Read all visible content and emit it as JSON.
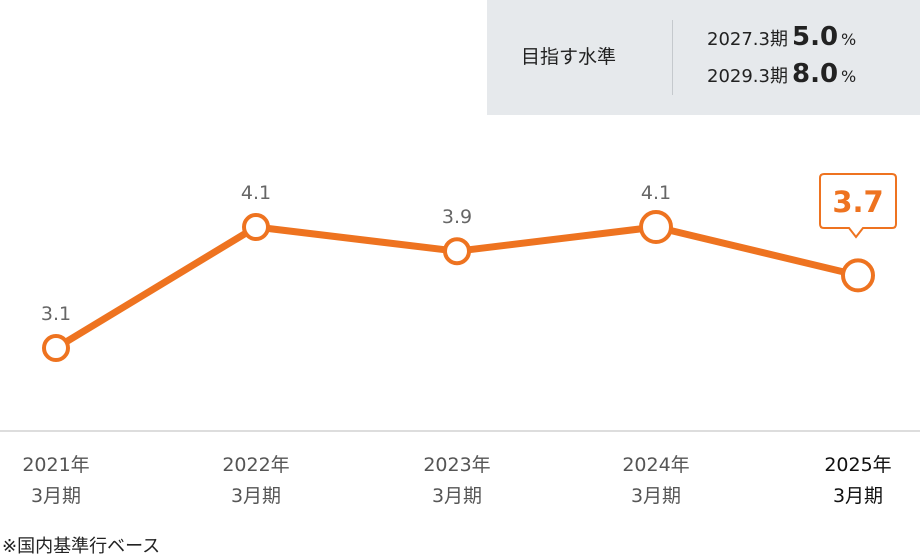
{
  "target": {
    "label": "目指す水準",
    "rows": [
      {
        "period": "2027.3期",
        "value": "5.0",
        "unit": "%"
      },
      {
        "period": "2029.3期",
        "value": "8.0",
        "unit": "%"
      }
    ]
  },
  "chart_data": {
    "type": "line",
    "categories": [
      "2021年 3月期",
      "2022年 3月期",
      "2023年 3月期",
      "2024年 3月期",
      "2025年 3月期"
    ],
    "category_lines": [
      [
        "2021年",
        "3月期"
      ],
      [
        "2022年",
        "3月期"
      ],
      [
        "2023年",
        "3月期"
      ],
      [
        "2024年",
        "3月期"
      ],
      [
        "2025年",
        "3月期"
      ]
    ],
    "values": [
      3.1,
      4.1,
      3.9,
      4.1,
      3.7
    ],
    "value_labels": [
      "3.1",
      "4.1",
      "3.9",
      "4.1",
      "3.7"
    ],
    "highlight_index": 4,
    "colors": {
      "line": "#ee7320",
      "label": "#666666",
      "highlight": "#ee7320",
      "axis": "#bbbbbb"
    },
    "grid": false,
    "legend": "none"
  },
  "footnote": "※国内基準行ベース"
}
